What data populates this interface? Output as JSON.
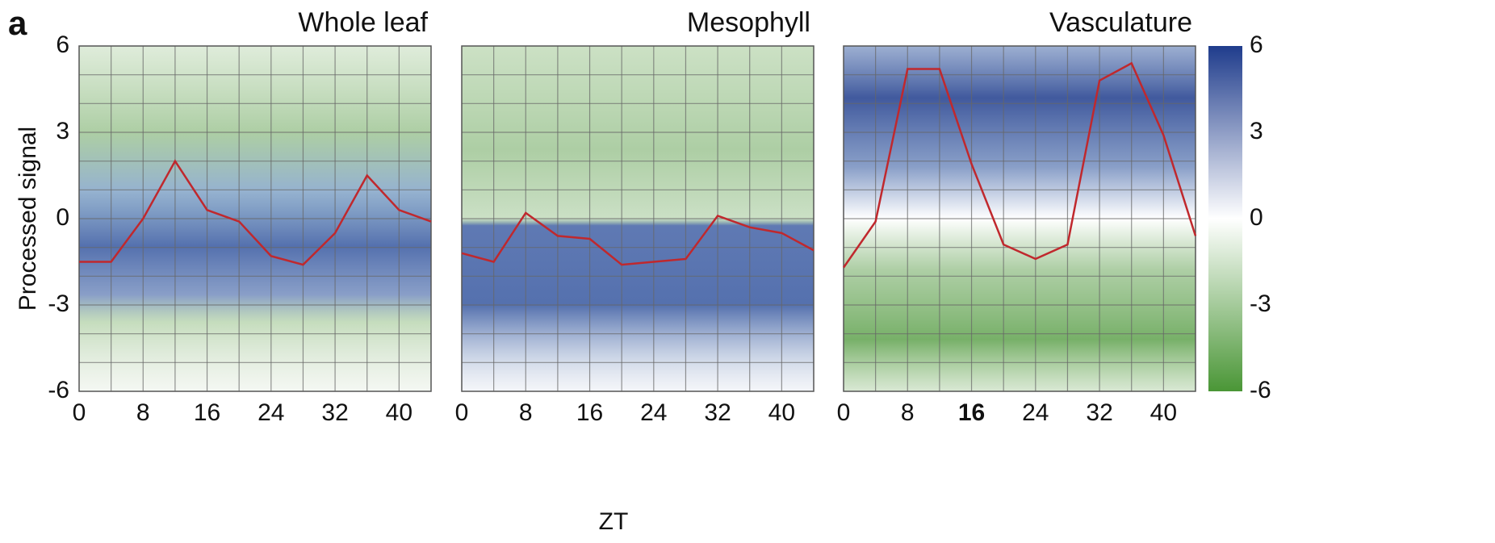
{
  "chart_data": [
    {
      "type": "line",
      "title": "Whole leaf",
      "panel_label": "a",
      "ylabel": "Processed signal",
      "x": [
        0,
        4,
        8,
        12,
        16,
        20,
        24,
        28,
        32,
        36,
        40,
        44
      ],
      "values": [
        -1.5,
        -1.5,
        0,
        2.0,
        0.3,
        -0.1,
        -1.3,
        -1.6,
        -0.5,
        1.5,
        0.3,
        -0.1
      ],
      "color": "#c0282d",
      "xlim": [
        0,
        44
      ],
      "xticks": [
        0,
        8,
        16,
        24,
        32,
        40
      ],
      "ylim": [
        -6,
        6
      ],
      "yticks": [
        6,
        3,
        0,
        -3,
        -6
      ],
      "xgrid": [
        4,
        8,
        12,
        16,
        20,
        24,
        28,
        32,
        36,
        40
      ],
      "ygrid": [
        -5,
        -4,
        -3,
        -2,
        -1,
        0,
        1,
        2,
        3,
        4,
        5
      ]
    },
    {
      "type": "line",
      "title": "Mesophyll",
      "xlabel": "ZT",
      "x": [
        0,
        4,
        8,
        12,
        16,
        20,
        24,
        28,
        32,
        36,
        40,
        44
      ],
      "values": [
        -1.2,
        -1.5,
        0.2,
        -0.6,
        -0.7,
        -1.6,
        -1.5,
        -1.4,
        0.1,
        -0.3,
        -0.5,
        -1.1
      ],
      "color": "#c0282d",
      "xlim": [
        0,
        44
      ],
      "xticks": [
        0,
        8,
        16,
        24,
        32,
        40
      ],
      "ylim": [
        -6,
        6
      ],
      "xgrid": [
        4,
        8,
        12,
        16,
        20,
        24,
        28,
        32,
        36,
        40
      ],
      "ygrid": [
        -5,
        -4,
        -3,
        -2,
        -1,
        0,
        1,
        2,
        3,
        4,
        5
      ]
    },
    {
      "type": "line",
      "title": "Vasculature",
      "x": [
        0,
        4,
        8,
        12,
        16,
        20,
        24,
        28,
        32,
        36,
        40,
        44
      ],
      "values": [
        -1.7,
        -0.1,
        5.2,
        5.2,
        1.9,
        -0.9,
        -1.4,
        -0.9,
        4.8,
        5.4,
        2.9,
        -0.6
      ],
      "color": "#c0282d",
      "xlim": [
        0,
        44
      ],
      "xticks": [
        0,
        8,
        16,
        24,
        32,
        40
      ],
      "highlight_xtick": 16,
      "ylim": [
        -6,
        6
      ],
      "xgrid": [
        4,
        8,
        12,
        16,
        20,
        24,
        28,
        32,
        36,
        40
      ],
      "ygrid": [
        -5,
        -4,
        -3,
        -2,
        -1,
        0,
        1,
        2,
        3,
        4,
        5
      ],
      "colorbar": {
        "lim": [
          -6,
          6
        ],
        "ticks": [
          6,
          3,
          0,
          -3,
          -6
        ],
        "colors": [
          "#4a9636",
          "#ffffff",
          "#1f3c8c"
        ]
      }
    }
  ]
}
